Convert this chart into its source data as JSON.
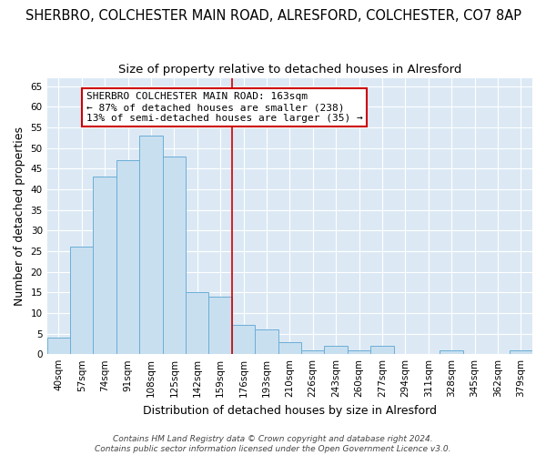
{
  "title": "SHERBRO, COLCHESTER MAIN ROAD, ALRESFORD, COLCHESTER, CO7 8AP",
  "subtitle": "Size of property relative to detached houses in Alresford",
  "xlabel": "Distribution of detached houses by size in Alresford",
  "ylabel": "Number of detached properties",
  "bar_labels": [
    "40sqm",
    "57sqm",
    "74sqm",
    "91sqm",
    "108sqm",
    "125sqm",
    "142sqm",
    "159sqm",
    "176sqm",
    "193sqm",
    "210sqm",
    "226sqm",
    "243sqm",
    "260sqm",
    "277sqm",
    "294sqm",
    "311sqm",
    "328sqm",
    "345sqm",
    "362sqm",
    "379sqm"
  ],
  "bar_values": [
    4,
    26,
    43,
    47,
    53,
    48,
    15,
    14,
    7,
    6,
    3,
    1,
    2,
    1,
    2,
    0,
    0,
    1,
    0,
    0,
    1
  ],
  "bar_color": "#c8dff0",
  "bar_edge_color": "#6baed6",
  "vline_x_index": 7.5,
  "vline_color": "#cc0000",
  "annotation_title": "SHERBRO COLCHESTER MAIN ROAD: 163sqm",
  "annotation_line1": "← 87% of detached houses are smaller (238)",
  "annotation_line2": "13% of semi-detached houses are larger (35) →",
  "annotation_box_facecolor": "#ffffff",
  "annotation_box_edgecolor": "#cc0000",
  "ylim": [
    0,
    67
  ],
  "yticks": [
    0,
    5,
    10,
    15,
    20,
    25,
    30,
    35,
    40,
    45,
    50,
    55,
    60,
    65
  ],
  "plot_bg_color": "#dce9f5",
  "background_color": "#ffffff",
  "grid_color": "#ffffff",
  "footer_line1": "Contains HM Land Registry data © Crown copyright and database right 2024.",
  "footer_line2": "Contains public sector information licensed under the Open Government Licence v3.0.",
  "title_fontsize": 10.5,
  "subtitle_fontsize": 9.5,
  "axis_label_fontsize": 9,
  "tick_fontsize": 7.5,
  "annotation_fontsize": 8,
  "footer_fontsize": 6.5
}
